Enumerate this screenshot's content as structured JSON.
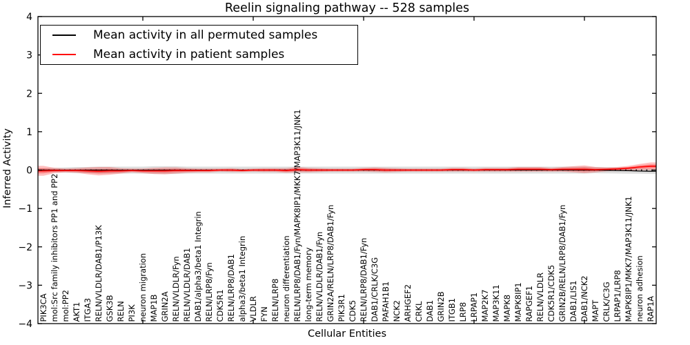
{
  "chart_data": {
    "type": "line",
    "title": "Reelin signaling pathway -- 528 samples",
    "xlabel": "Cellular Entities",
    "ylabel": "Inferred Activity",
    "ylim": [
      -4,
      4
    ],
    "yticks": [
      "4",
      "3",
      "2",
      "1",
      "0",
      "−1",
      "−2",
      "−3",
      "−4"
    ],
    "grid": false,
    "legend_position": "upper left",
    "x_tick_label_rotation": 90,
    "categories": [
      "PIK3CA",
      "mol:Src family inhibitors PP1 and PP2",
      "mol:PP2",
      "AKT1",
      "ITGA3",
      "RELN/VLDLR/DAB1/P13K",
      "GSK3B",
      "RELN",
      "PI3K",
      "neuron migration",
      "MAP1B",
      "GRIN2A",
      "RELN/VLDLR/Fyn",
      "RELN/VLDLR/DAB1",
      "DAB1/alpha3/beta1 Integrin",
      "RELN/LRP8/Fyn",
      "CDK5R1",
      "RELN/LRP8/DAB1",
      "alpha3/beta1 Integrin",
      "VLDLR",
      "FYN",
      "RELN/LRP8",
      "neuron differentiation",
      "RELN/LRP8/DAB1/Fyn/MAPK8IP1/MKK7/MAP3K11/JNK1",
      "long-term memory",
      "RELN/VLDLR/DAB1/Fyn",
      "GRIN2A/RELN/LRP8/DAB1/Fyn",
      "PIK3R1",
      "CDK5",
      "RELN/LRP8/DAB1/Fyn",
      "DAB1/CRLK/C3G",
      "PAFAH1B1",
      "NCK2",
      "ARHGEF2",
      "CRKL",
      "DAB1",
      "GRIN2B",
      "ITGB1",
      "LRP8",
      "LRPAP1",
      "MAP2K7",
      "MAP3K11",
      "MAPK8",
      "MAPK8IP1",
      "RAPGEF1",
      "RELN/VLDLR",
      "CDK5R1/CDK5",
      "GRIN2B/RELN/LRP8/DAB1/Fyn",
      "DAB1/LIS1",
      "DAB1/NCK2",
      "MAPT",
      "CRLK/C3G",
      "LRPAP1/LRP8",
      "MAPK8IP1/MKK7/MAP3K11/JNK1",
      "neuron adhesion",
      "RAP1A"
    ],
    "series": [
      {
        "name": "Mean activity in all permuted samples",
        "color": "#000000",
        "values": [
          0,
          0,
          0,
          0,
          0,
          0,
          0,
          0,
          0,
          0,
          0,
          0,
          0,
          0,
          0,
          0,
          0,
          0,
          0,
          0,
          0,
          0,
          0,
          0,
          0,
          0,
          0,
          0,
          0,
          0,
          0,
          0,
          0,
          0,
          0,
          0,
          0,
          0,
          0,
          0,
          0,
          0,
          0,
          0,
          0,
          0,
          0,
          0,
          0,
          0,
          0,
          -0.005,
          -0.01,
          -0.015,
          -0.025,
          -0.03
        ],
        "band_halfwidth": [
          0.05,
          0.06,
          0.07,
          0.08,
          0.08,
          0.09,
          0.09,
          0.09,
          0.09,
          0.09,
          0.1,
          0.1,
          0.1,
          0.09,
          0.09,
          0.09,
          0.09,
          0.09,
          0.09,
          0.09,
          0.09,
          0.09,
          0.09,
          0.09,
          0.09,
          0.09,
          0.09,
          0.09,
          0.09,
          0.09,
          0.09,
          0.09,
          0.09,
          0.09,
          0.09,
          0.09,
          0.09,
          0.09,
          0.09,
          0.09,
          0.09,
          0.09,
          0.09,
          0.09,
          0.09,
          0.09,
          0.09,
          0.09,
          0.09,
          0.09,
          0.08,
          0.08,
          0.08,
          0.08,
          0.07,
          0.07
        ]
      },
      {
        "name": "Mean activity in patient samples",
        "color": "#ff0000",
        "values": [
          -0.02,
          -0.01,
          -0.01,
          -0.01,
          -0.02,
          -0.03,
          -0.02,
          -0.02,
          -0.01,
          -0.02,
          -0.02,
          -0.02,
          -0.01,
          -0.01,
          -0.01,
          -0.01,
          0,
          0,
          -0.01,
          0,
          0,
          0,
          -0.01,
          0.01,
          0,
          0,
          0,
          0,
          0,
          0.01,
          0.01,
          0,
          0,
          0,
          0,
          0,
          0,
          0.01,
          0.01,
          0,
          0.01,
          0.01,
          0.01,
          0.02,
          0.02,
          0.02,
          0.01,
          0.02,
          0.02,
          0.02,
          0.01,
          0.02,
          0.03,
          0.05,
          0.08,
          0.1
        ],
        "band_halfwidth": [
          0.13,
          0.07,
          0.05,
          0.06,
          0.09,
          0.11,
          0.1,
          0.07,
          0.05,
          0.06,
          0.08,
          0.09,
          0.08,
          0.06,
          0.05,
          0.05,
          0.04,
          0.05,
          0.04,
          0.04,
          0.05,
          0.05,
          0.06,
          0.07,
          0.06,
          0.05,
          0.04,
          0.04,
          0.04,
          0.05,
          0.06,
          0.06,
          0.05,
          0.04,
          0.04,
          0.04,
          0.04,
          0.05,
          0.05,
          0.04,
          0.05,
          0.05,
          0.05,
          0.06,
          0.06,
          0.06,
          0.05,
          0.06,
          0.08,
          0.1,
          0.07,
          0.05,
          0.05,
          0.06,
          0.08,
          0.1
        ]
      }
    ]
  },
  "colors": {
    "patient_line": "#ff0000",
    "permuted_line": "#000000",
    "patient_band": "#ff0000",
    "permuted_band": "#888888",
    "axes": "#000000",
    "background": "#ffffff"
  }
}
